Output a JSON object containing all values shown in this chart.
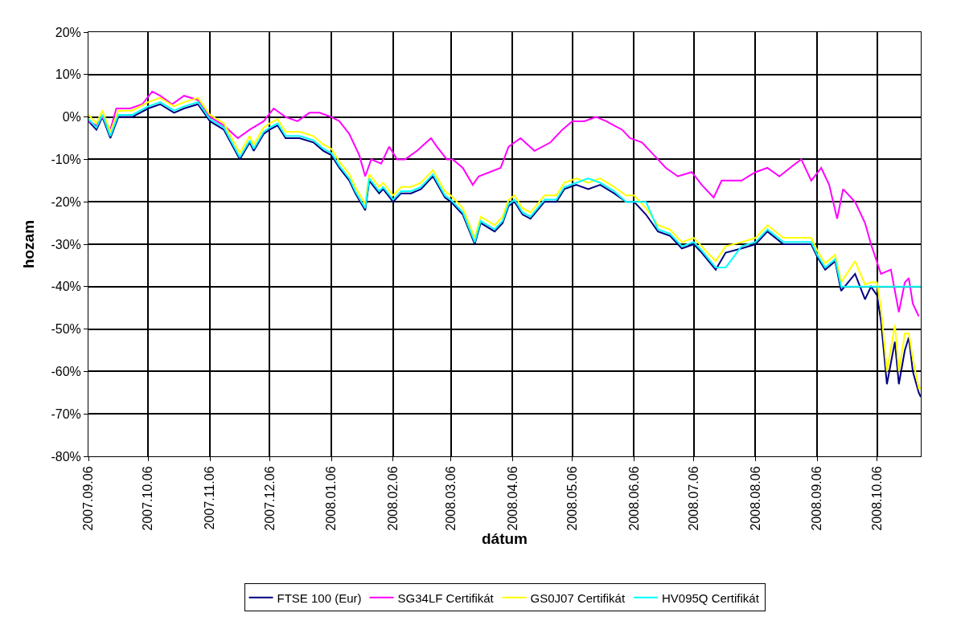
{
  "chart_data": {
    "type": "line",
    "xlabel": "dátum",
    "ylabel": "hozam",
    "x": [
      "2007-09-06",
      "2007-09-10",
      "2007-09-13",
      "2007-09-17",
      "2007-09-21",
      "2007-09-28",
      "2007-10-06",
      "2007-10-12",
      "2007-10-19",
      "2007-10-24",
      "2007-10-31",
      "2007-11-06",
      "2007-11-13",
      "2007-11-21",
      "2007-11-26",
      "2007-11-28",
      "2007-12-03",
      "2007-12-06",
      "2007-12-10",
      "2007-12-14",
      "2007-12-21",
      "2007-12-28",
      "2008-01-02",
      "2008-01-06",
      "2008-01-10",
      "2008-01-15",
      "2008-01-18",
      "2008-01-23",
      "2008-01-25",
      "2008-01-30",
      "2008-02-01",
      "2008-02-06",
      "2008-02-10",
      "2008-02-15",
      "2008-02-20",
      "2008-02-26",
      "2008-03-03",
      "2008-03-06",
      "2008-03-12",
      "2008-03-18",
      "2008-03-21",
      "2008-03-28",
      "2008-04-01",
      "2008-04-04",
      "2008-04-07",
      "2008-04-11",
      "2008-04-15",
      "2008-04-22",
      "2008-04-28",
      "2008-05-02",
      "2008-05-08",
      "2008-05-14",
      "2008-05-20",
      "2008-05-27",
      "2008-06-02",
      "2008-06-06",
      "2008-06-12",
      "2008-06-18",
      "2008-06-24",
      "2008-06-30",
      "2008-07-06",
      "2008-07-10",
      "2008-07-17",
      "2008-07-22",
      "2008-07-30",
      "2008-08-06",
      "2008-08-12",
      "2008-08-20",
      "2008-08-27",
      "2008-09-03",
      "2008-09-06",
      "2008-09-10",
      "2008-09-15",
      "2008-09-18",
      "2008-09-25",
      "2008-09-30",
      "2008-10-03",
      "2008-10-06",
      "2008-10-08",
      "2008-10-11",
      "2008-10-15",
      "2008-10-17",
      "2008-10-20",
      "2008-10-22",
      "2008-10-24",
      "2008-10-27",
      "2008-10-28"
    ],
    "series": [
      {
        "name": "FTSE 100 (Eur)",
        "color": "#000080",
        "values": [
          -1,
          -3,
          0,
          -5,
          0,
          0,
          2,
          3,
          1,
          2,
          3,
          -1,
          -3,
          -10,
          -6,
          -8,
          -4,
          -3,
          -2,
          -5,
          -5,
          -6,
          -8,
          -9,
          -12,
          -15,
          -18,
          -22,
          -15,
          -18,
          -17,
          -20,
          -18,
          -18,
          -17,
          -14,
          -19,
          -20,
          -23,
          -30,
          -25,
          -27,
          -25,
          -21,
          -20,
          -23,
          -24,
          -20,
          -20,
          -17,
          -16,
          -17,
          -16,
          -18,
          -20,
          -20,
          -23,
          -27,
          -28,
          -31,
          -30,
          -32,
          -36,
          -32,
          -31,
          -30,
          -27,
          -30,
          -30,
          -30,
          -33,
          -36,
          -34,
          -41,
          -37,
          -43,
          -40,
          -42,
          -48,
          -63,
          -53,
          -63,
          -55,
          -52,
          -60,
          -65,
          -66
        ]
      },
      {
        "name": "SG34LF Certifikát",
        "color": "#ff00ff",
        "x": [
          "2007-09-06",
          "2007-09-10",
          "2007-09-13",
          "2007-09-17",
          "2007-09-20",
          "2007-09-27",
          "2007-10-03",
          "2007-10-08",
          "2007-10-12",
          "2007-10-18",
          "2007-10-24",
          "2007-10-31",
          "2007-11-06",
          "2007-11-13",
          "2007-11-20",
          "2007-11-26",
          "2007-12-03",
          "2007-12-08",
          "2007-12-14",
          "2007-12-20",
          "2007-12-26",
          "2007-12-31",
          "2008-01-06",
          "2008-01-10",
          "2008-01-15",
          "2008-01-20",
          "2008-01-23",
          "2008-01-26",
          "2008-01-31",
          "2008-02-04",
          "2008-02-08",
          "2008-02-12",
          "2008-02-18",
          "2008-02-25",
          "2008-02-28",
          "2008-03-04",
          "2008-03-07",
          "2008-03-12",
          "2008-03-17",
          "2008-03-20",
          "2008-03-31",
          "2008-04-04",
          "2008-04-10",
          "2008-04-17",
          "2008-04-25",
          "2008-05-01",
          "2008-05-06",
          "2008-05-12",
          "2008-05-18",
          "2008-05-23",
          "2008-05-31",
          "2008-06-04",
          "2008-06-10",
          "2008-06-16",
          "2008-06-22",
          "2008-06-28",
          "2008-07-05",
          "2008-07-10",
          "2008-07-16",
          "2008-07-20",
          "2008-07-30",
          "2008-08-06",
          "2008-08-12",
          "2008-08-18",
          "2008-08-26",
          "2008-08-29",
          "2008-09-03",
          "2008-09-08",
          "2008-09-12",
          "2008-09-16",
          "2008-09-19",
          "2008-09-25",
          "2008-09-30",
          "2008-10-03",
          "2008-10-08",
          "2008-10-13",
          "2008-10-17",
          "2008-10-20",
          "2008-10-22",
          "2008-10-24",
          "2008-10-27"
        ],
        "values": [
          -1,
          -2,
          0,
          -3,
          2,
          2,
          3,
          6,
          5,
          3,
          5,
          4,
          0,
          -2,
          -5,
          -3,
          -1,
          2,
          0,
          -1,
          1,
          1,
          0,
          -1,
          -4,
          -9,
          -14,
          -10,
          -11,
          -7,
          -10,
          -10,
          -8,
          -5,
          -7,
          -10,
          -10,
          -12,
          -16,
          -14,
          -12,
          -7,
          -5,
          -8,
          -6,
          -3,
          -1,
          -1,
          0,
          -1,
          -3,
          -5,
          -6,
          -9,
          -12,
          -14,
          -13,
          -16,
          -19,
          -15,
          -15,
          -13,
          -12,
          -14,
          -11,
          -10,
          -15,
          -12,
          -16,
          -24,
          -17,
          -20,
          -25,
          -30,
          -37,
          -36,
          -46,
          -39,
          -38,
          -44,
          -47
        ]
      },
      {
        "name": "GS0J07 Certifikát",
        "color": "#ffff00",
        "values": [
          0.5,
          -1.5,
          1.5,
          -3.5,
          1.5,
          1.5,
          3.5,
          4.5,
          2.5,
          3.5,
          4.5,
          0.5,
          -1.5,
          -8.5,
          -4.5,
          -6.5,
          -2.5,
          -1.5,
          -0.5,
          -3.5,
          -3.5,
          -4.5,
          -6.5,
          -7.5,
          -10.5,
          -13.5,
          -16.5,
          -20.5,
          -13.5,
          -16.5,
          -15.5,
          -18.5,
          -16.5,
          -16.5,
          -15.5,
          -12.5,
          -17.5,
          -18.5,
          -21.5,
          -28.5,
          -23.5,
          -25.5,
          -23.5,
          -19.5,
          -18.5,
          -21.5,
          -22.5,
          -18.5,
          -18.5,
          -15.5,
          -14.5,
          -15.5,
          -14.5,
          -16.5,
          -18.5,
          -18.5,
          -21.5,
          -25.5,
          -26.5,
          -29.5,
          -28.5,
          -30.5,
          -34,
          -30.5,
          -29.5,
          -28.5,
          -25.5,
          -28.5,
          -28.5,
          -28.5,
          -31.5,
          -34.5,
          -32.5,
          -39,
          -34,
          -39.5,
          -39,
          -39,
          -45,
          -60,
          -49,
          -60,
          -51,
          -51,
          -57,
          -64,
          -64
        ]
      },
      {
        "name": "HV095Q Certifikát",
        "color": "#00ffff",
        "values": [
          -0.5,
          -2.5,
          0.5,
          -4.5,
          0.5,
          0.5,
          2.5,
          3.5,
          1.5,
          2.5,
          3.5,
          -0.5,
          -2.5,
          -9.5,
          -5.5,
          -7.5,
          -3.5,
          -2.5,
          -1.5,
          -4.5,
          -4.5,
          -5.5,
          -7.5,
          -8.5,
          -11.5,
          -14.5,
          -17.5,
          -21.5,
          -14.5,
          -17.5,
          -16.5,
          -19.5,
          -17.5,
          -17.5,
          -16.5,
          -13.5,
          -18.5,
          -19.5,
          -22.5,
          -29.5,
          -24.5,
          -26.5,
          -24.5,
          -20.5,
          -19.5,
          -22.5,
          -23.5,
          -19.5,
          -19.5,
          -16.5,
          -15.5,
          -14.5,
          -15.5,
          -17.5,
          -20,
          -20,
          -20,
          -26.5,
          -27.5,
          -30.5,
          -29.5,
          -31.5,
          -35.5,
          -35.5,
          -30.5,
          -29.5,
          -26.5,
          -29.5,
          -29.5,
          -29.5,
          -32.5,
          -35.5,
          -33.5,
          -40,
          -40,
          -40,
          -40,
          -40,
          -40,
          -40,
          -40,
          -40,
          -40,
          -40,
          -40,
          -40,
          -40
        ]
      }
    ],
    "ylim": [
      -80,
      20
    ],
    "yticks": [
      {
        "value": 20,
        "label": "20%"
      },
      {
        "value": 10,
        "label": "10%"
      },
      {
        "value": 0,
        "label": "0%"
      },
      {
        "value": -10,
        "label": "-10%"
      },
      {
        "value": -20,
        "label": "-20%"
      },
      {
        "value": -30,
        "label": "-30%"
      },
      {
        "value": -40,
        "label": "-40%"
      },
      {
        "value": -50,
        "label": "-50%"
      },
      {
        "value": -60,
        "label": "-60%"
      },
      {
        "value": -70,
        "label": "-70%"
      },
      {
        "value": -80,
        "label": "-80%"
      }
    ],
    "xlim": [
      "2007-09-06",
      "2008-10-28"
    ],
    "xticks": [
      {
        "value": "2007-09-06",
        "label": "2007.09.06"
      },
      {
        "value": "2007-10-06",
        "label": "2007.10.06"
      },
      {
        "value": "2007-11-06",
        "label": "2007.11.06"
      },
      {
        "value": "2007-12-06",
        "label": "2007.12.06"
      },
      {
        "value": "2008-01-06",
        "label": "2008.01.06"
      },
      {
        "value": "2008-02-06",
        "label": "2008.02.06"
      },
      {
        "value": "2008-03-06",
        "label": "2008.03.06"
      },
      {
        "value": "2008-04-06",
        "label": "2008.04.06"
      },
      {
        "value": "2008-05-06",
        "label": "2008.05.06"
      },
      {
        "value": "2008-06-06",
        "label": "2008.06.06"
      },
      {
        "value": "2008-07-06",
        "label": "2008.07.06"
      },
      {
        "value": "2008-08-06",
        "label": "2008.08.06"
      },
      {
        "value": "2008-09-06",
        "label": "2008.09.06"
      },
      {
        "value": "2008-10-06",
        "label": "2008.10.06"
      }
    ],
    "grid": true,
    "legend": "bottom",
    "marker": "none",
    "line_style": "solid"
  }
}
